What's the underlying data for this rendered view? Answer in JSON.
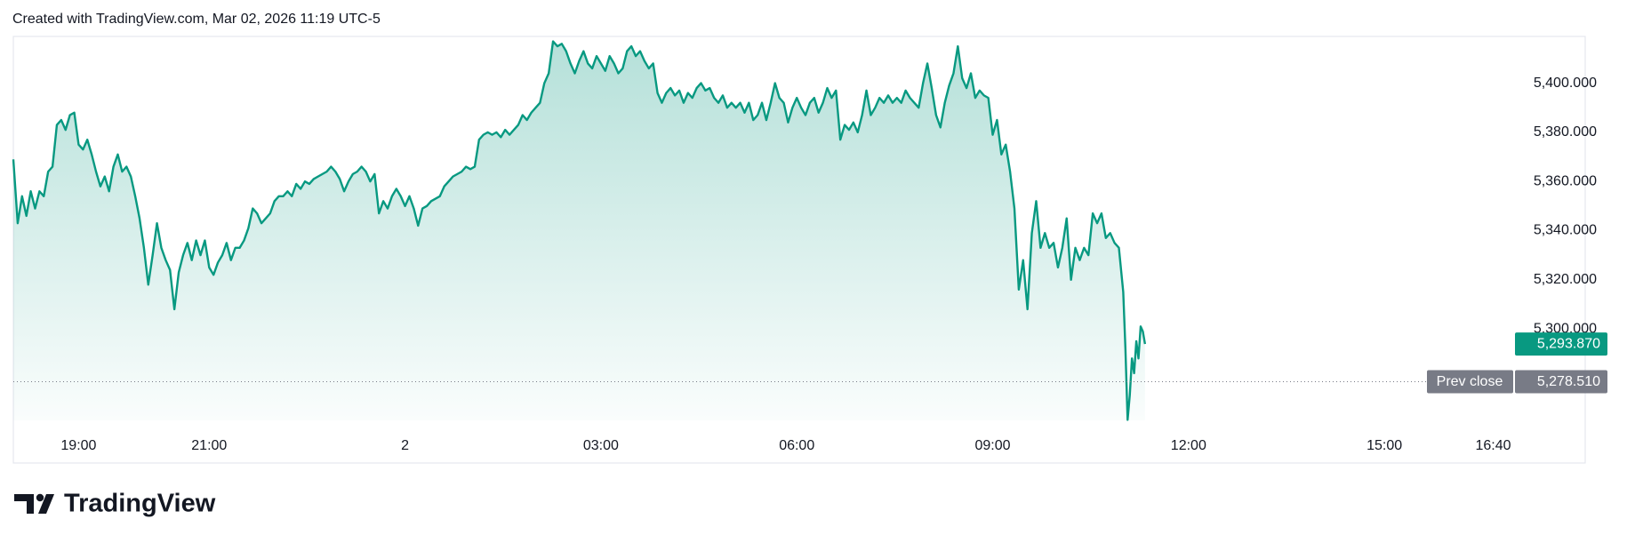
{
  "header": "Created with TradingView.com, Mar 02, 2026 11:19 UTC-5",
  "branding": "TradingView",
  "chart_data": {
    "type": "area",
    "color": "#089981",
    "x": [
      -360,
      -356,
      -352,
      -348,
      -344,
      -340,
      -336,
      -332,
      -328,
      -324,
      -320,
      -316,
      -312,
      -308,
      -304,
      -300,
      -296,
      -292,
      -288,
      -284,
      -280,
      -276,
      -272,
      -268,
      -264,
      -260,
      -256,
      -252,
      -248,
      -244,
      -240,
      -236,
      -232,
      -228,
      -224,
      -220,
      -216,
      -212,
      -208,
      -204,
      -200,
      -196,
      -192,
      -188,
      -184,
      -180,
      -176,
      -172,
      -168,
      -164,
      -160,
      -156,
      -152,
      -148,
      -144,
      -140,
      -136,
      -132,
      -128,
      -124,
      -120,
      -116,
      -112,
      -108,
      -104,
      -100,
      -96,
      -92,
      -88,
      -84,
      -80,
      -76,
      -72,
      -68,
      -64,
      -60,
      -56,
      -52,
      -48,
      -44,
      -40,
      -36,
      -32,
      -28,
      -24,
      -20,
      -16,
      -12,
      -8,
      -4,
      0,
      4,
      8,
      12,
      16,
      20,
      24,
      28,
      32,
      36,
      40,
      44,
      48,
      52,
      56,
      60,
      64,
      68,
      72,
      76,
      80,
      84,
      88,
      92,
      96,
      100,
      104,
      108,
      112,
      116,
      120,
      124,
      128,
      132,
      136,
      140,
      144,
      148,
      152,
      156,
      160,
      164,
      168,
      172,
      176,
      180,
      184,
      188,
      192,
      196,
      200,
      204,
      208,
      212,
      216,
      220,
      224,
      228,
      232,
      236,
      240,
      244,
      248,
      252,
      256,
      260,
      264,
      268,
      272,
      276,
      280,
      284,
      288,
      292,
      296,
      300,
      304,
      308,
      312,
      316,
      320,
      324,
      328,
      332,
      336,
      340,
      344,
      348,
      352,
      356,
      360,
      364,
      368,
      372,
      376,
      380,
      384,
      388,
      392,
      396,
      400,
      404,
      408,
      412,
      416,
      420,
      424,
      428,
      432,
      436,
      440,
      444,
      448,
      452,
      456,
      460,
      464,
      468,
      472,
      476,
      480,
      484,
      488,
      492,
      496,
      500,
      504,
      508,
      512,
      516,
      520,
      524,
      528,
      532,
      536,
      540,
      544,
      548,
      552,
      556,
      560,
      564,
      568,
      572,
      576,
      580,
      584,
      588,
      592,
      596,
      600,
      604,
      608,
      612,
      616,
      620,
      624,
      628,
      632,
      636,
      640,
      644,
      648,
      652,
      656,
      660,
      662,
      664,
      666,
      668,
      670,
      672,
      674,
      676,
      678,
      680
    ],
    "values": [
      5369,
      5343,
      5354,
      5346,
      5356,
      5349,
      5356,
      5354,
      5364,
      5366,
      5383,
      5385,
      5381,
      5387,
      5388,
      5375,
      5373,
      5377,
      5371,
      5364,
      5358,
      5362,
      5356,
      5366,
      5371,
      5364,
      5366,
      5362,
      5354,
      5345,
      5333,
      5318,
      5330,
      5343,
      5333,
      5328,
      5324,
      5308,
      5323,
      5330,
      5335,
      5328,
      5336,
      5330,
      5336,
      5325,
      5322,
      5327,
      5330,
      5335,
      5328,
      5333,
      5333,
      5336,
      5341,
      5349,
      5347,
      5343,
      5345,
      5347,
      5352,
      5354,
      5354,
      5356,
      5354,
      5359,
      5357,
      5360,
      5359,
      5361,
      5362,
      5363,
      5364,
      5366,
      5364,
      5361,
      5356,
      5360,
      5363,
      5364,
      5366,
      5364,
      5360,
      5363,
      5347,
      5352,
      5349,
      5354,
      5357,
      5354,
      5350,
      5354,
      5349,
      5342,
      5349,
      5350,
      5352,
      5353,
      5354,
      5358,
      5360,
      5362,
      5363,
      5364,
      5366,
      5365,
      5366,
      5377,
      5379,
      5380,
      5379,
      5380,
      5378,
      5381,
      5379,
      5381,
      5383,
      5387,
      5385,
      5388,
      5390,
      5392,
      5400,
      5404,
      5417,
      5415,
      5416,
      5413,
      5408,
      5404,
      5409,
      5413,
      5408,
      5406,
      5411,
      5408,
      5405,
      5411,
      5408,
      5404,
      5406,
      5413,
      5415,
      5411,
      5413,
      5409,
      5406,
      5408,
      5396,
      5392,
      5396,
      5398,
      5395,
      5397,
      5392,
      5396,
      5394,
      5398,
      5400,
      5397,
      5398,
      5394,
      5392,
      5395,
      5390,
      5392,
      5390,
      5392,
      5388,
      5392,
      5385,
      5387,
      5392,
      5385,
      5392,
      5400,
      5394,
      5392,
      5384,
      5390,
      5394,
      5390,
      5387,
      5392,
      5394,
      5388,
      5392,
      5398,
      5394,
      5397,
      5377,
      5383,
      5381,
      5384,
      5380,
      5387,
      5397,
      5387,
      5390,
      5394,
      5392,
      5395,
      5392,
      5394,
      5392,
      5397,
      5394,
      5392,
      5390,
      5400,
      5408,
      5398,
      5387,
      5382,
      5392,
      5399,
      5404,
      5415,
      5402,
      5398,
      5404,
      5394,
      5397,
      5395,
      5394,
      5379,
      5385,
      5371,
      5375,
      5364,
      5349,
      5316,
      5328,
      5308,
      5339,
      5352,
      5333,
      5339,
      5333,
      5335,
      5325,
      5333,
      5345,
      5320,
      5333,
      5328,
      5333,
      5330,
      5347,
      5343,
      5347,
      5337,
      5339,
      5335,
      5333,
      5315,
      5292,
      5263,
      5273,
      5288,
      5282,
      5295,
      5288,
      5301,
      5299,
      5293.87
    ],
    "xlim": [
      -360,
      1020
    ],
    "ylim": [
      5262.8,
      5419
    ],
    "xticks": [
      {
        "value": -300,
        "label": "19:00"
      },
      {
        "value": -180,
        "label": "21:00"
      },
      {
        "value": 0,
        "label": "2"
      },
      {
        "value": 180,
        "label": "03:00"
      },
      {
        "value": 360,
        "label": "06:00"
      },
      {
        "value": 540,
        "label": "09:00"
      },
      {
        "value": 720,
        "label": "12:00"
      },
      {
        "value": 900,
        "label": "15:00"
      },
      {
        "value": 1000,
        "label": "16:40"
      }
    ],
    "yticks": [
      {
        "value": 5300,
        "label": "5,300.000"
      },
      {
        "value": 5320,
        "label": "5,320.000"
      },
      {
        "value": 5340,
        "label": "5,340.000"
      },
      {
        "value": 5360,
        "label": "5,360.000"
      },
      {
        "value": 5380,
        "label": "5,380.000"
      },
      {
        "value": 5400,
        "label": "5,400.000"
      }
    ],
    "grid": false,
    "last_price": {
      "value": 5293.87,
      "label": "5,293.870"
    },
    "prev_close": {
      "name": "Prev close",
      "value": 5278.51,
      "label": "5,278.510",
      "color": "#787b86"
    }
  }
}
